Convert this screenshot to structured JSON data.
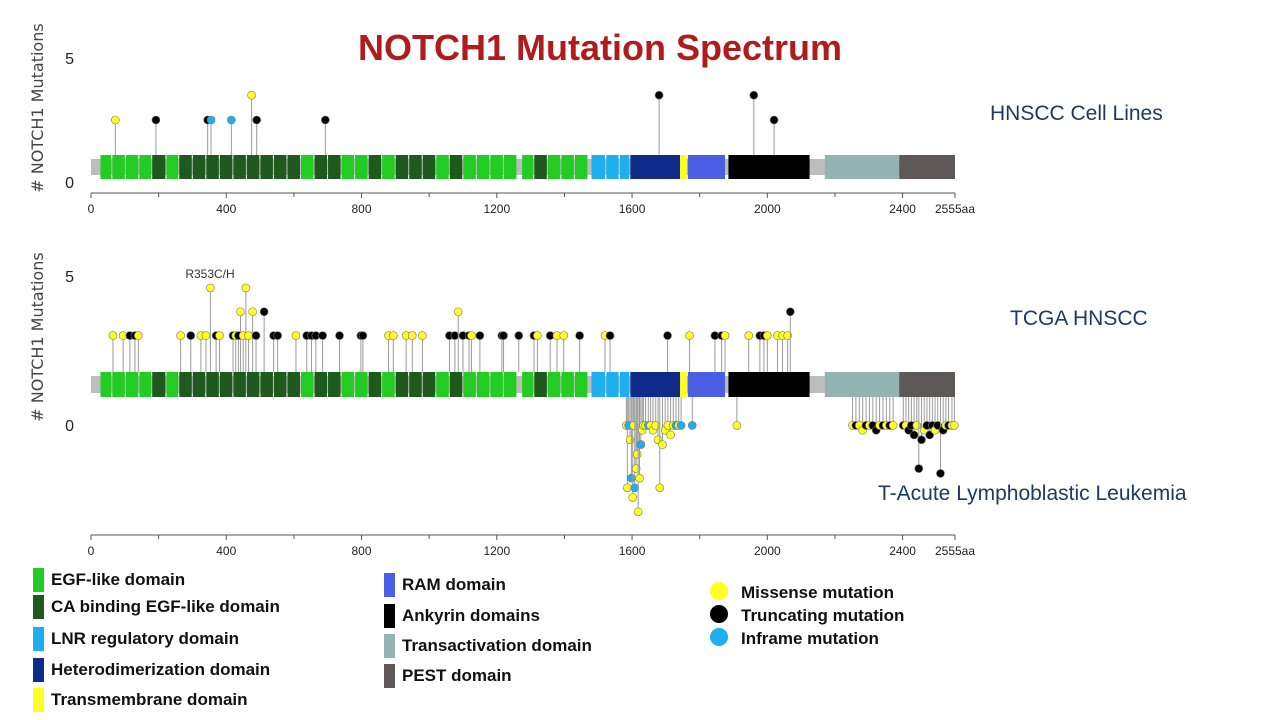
{
  "chart_data": {
    "type": "lollipop",
    "title": "NOTCH1 Mutation Spectrum",
    "ylabel": "# NOTCH1 Mutations",
    "x_max": 2555,
    "x_ticks": [
      0,
      400,
      800,
      1200,
      1600,
      2000,
      2400,
      2555
    ],
    "x_tick_labels": [
      "0",
      "400",
      "800",
      "1200",
      "1600",
      "2000",
      "2400",
      "2555aa"
    ],
    "domains": [
      {
        "name": "EGF-like domain",
        "color": "#22cc22"
      },
      {
        "name": "CA binding EGF-like domain",
        "color": "#1e5a1e"
      },
      {
        "name": "LNR regulatory domain",
        "color": "#1eaff0"
      },
      {
        "name": "Heterodimerization domain",
        "color": "#0e2b8a"
      },
      {
        "name": "Transmembrane domain",
        "color": "#ffff22"
      },
      {
        "name": "RAM domain",
        "color": "#4a5ee6"
      },
      {
        "name": "Ankyrin domains",
        "color": "#000000"
      },
      {
        "name": "Transactivation domain",
        "color": "#94b4b4"
      },
      {
        "name": "PEST domain",
        "color": "#5e5858"
      }
    ],
    "domain_segments": [
      {
        "domain": 0,
        "start": 28,
        "end": 60
      },
      {
        "domain": 0,
        "start": 63,
        "end": 100
      },
      {
        "domain": 0,
        "start": 103,
        "end": 140
      },
      {
        "domain": 0,
        "start": 143,
        "end": 178
      },
      {
        "domain": 1,
        "start": 181,
        "end": 220
      },
      {
        "domain": 0,
        "start": 223,
        "end": 258
      },
      {
        "domain": 1,
        "start": 261,
        "end": 298
      },
      {
        "domain": 1,
        "start": 301,
        "end": 338
      },
      {
        "domain": 1,
        "start": 341,
        "end": 378
      },
      {
        "domain": 1,
        "start": 381,
        "end": 418
      },
      {
        "domain": 1,
        "start": 421,
        "end": 458
      },
      {
        "domain": 1,
        "start": 461,
        "end": 498
      },
      {
        "domain": 1,
        "start": 501,
        "end": 538
      },
      {
        "domain": 1,
        "start": 541,
        "end": 578
      },
      {
        "domain": 1,
        "start": 581,
        "end": 618
      },
      {
        "domain": 0,
        "start": 621,
        "end": 658
      },
      {
        "domain": 1,
        "start": 661,
        "end": 698
      },
      {
        "domain": 1,
        "start": 701,
        "end": 738
      },
      {
        "domain": 0,
        "start": 741,
        "end": 778
      },
      {
        "domain": 0,
        "start": 781,
        "end": 818
      },
      {
        "domain": 1,
        "start": 821,
        "end": 858
      },
      {
        "domain": 0,
        "start": 861,
        "end": 898
      },
      {
        "domain": 1,
        "start": 901,
        "end": 938
      },
      {
        "domain": 1,
        "start": 941,
        "end": 978
      },
      {
        "domain": 1,
        "start": 981,
        "end": 1018
      },
      {
        "domain": 0,
        "start": 1021,
        "end": 1058
      },
      {
        "domain": 1,
        "start": 1061,
        "end": 1098
      },
      {
        "domain": 0,
        "start": 1101,
        "end": 1138
      },
      {
        "domain": 0,
        "start": 1141,
        "end": 1178
      },
      {
        "domain": 0,
        "start": 1181,
        "end": 1218
      },
      {
        "domain": 0,
        "start": 1221,
        "end": 1258
      },
      {
        "domain": 0,
        "start": 1275,
        "end": 1308
      },
      {
        "domain": 1,
        "start": 1311,
        "end": 1348
      },
      {
        "domain": 0,
        "start": 1351,
        "end": 1388
      },
      {
        "domain": 0,
        "start": 1391,
        "end": 1428
      },
      {
        "domain": 0,
        "start": 1431,
        "end": 1468
      },
      {
        "domain": 2,
        "start": 1480,
        "end": 1520
      },
      {
        "domain": 2,
        "start": 1524,
        "end": 1560
      },
      {
        "domain": 2,
        "start": 1564,
        "end": 1592
      },
      {
        "domain": 3,
        "start": 1595,
        "end": 1742
      },
      {
        "domain": 4,
        "start": 1742,
        "end": 1762
      },
      {
        "domain": 5,
        "start": 1765,
        "end": 1875
      },
      {
        "domain": 6,
        "start": 1885,
        "end": 2125
      },
      {
        "domain": 7,
        "start": 2170,
        "end": 2390
      },
      {
        "domain": 8,
        "start": 2390,
        "end": 2555
      }
    ],
    "mutation_types": [
      {
        "name": "Missense mutation",
        "color": "#ffff22"
      },
      {
        "name": "Truncating mutation",
        "color": "#000000"
      },
      {
        "name": "Inframe mutation",
        "color": "#1eaff0"
      }
    ],
    "panels": [
      {
        "label": "HNSCC Cell Lines",
        "y_ticks": [
          0,
          5
        ],
        "y_max": 5,
        "has_lower": false,
        "upper_mutations": [
          {
            "pos": 72,
            "count": 2.5,
            "type": 0
          },
          {
            "pos": 192,
            "count": 2.5,
            "type": 1
          },
          {
            "pos": 345,
            "count": 2.5,
            "type": 1
          },
          {
            "pos": 355,
            "count": 2.5,
            "type": 2
          },
          {
            "pos": 415,
            "count": 2.5,
            "type": 2
          },
          {
            "pos": 475,
            "count": 3.5,
            "type": 0
          },
          {
            "pos": 490,
            "count": 2.5,
            "type": 1
          },
          {
            "pos": 693,
            "count": 2.5,
            "type": 1
          },
          {
            "pos": 1680,
            "count": 3.5,
            "type": 1
          },
          {
            "pos": 1960,
            "count": 3.5,
            "type": 1
          },
          {
            "pos": 2020,
            "count": 2.5,
            "type": 1
          }
        ],
        "lower_mutations": []
      },
      {
        "label": "TCGA HNSCC",
        "lower_label": "T-Acute Lymphoblastic Leukemia",
        "annotation": {
          "text": "R353C/H",
          "pos": 353
        },
        "y_ticks": [
          0,
          5
        ],
        "y_max": 5,
        "has_lower": true,
        "upper_mutations": [
          {
            "pos": 65,
            "count": 3,
            "type": 0
          },
          {
            "pos": 95,
            "count": 3,
            "type": 0
          },
          {
            "pos": 115,
            "count": 3,
            "type": 1
          },
          {
            "pos": 130,
            "count": 3,
            "type": 1
          },
          {
            "pos": 140,
            "count": 3,
            "type": 0
          },
          {
            "pos": 265,
            "count": 3,
            "type": 0
          },
          {
            "pos": 295,
            "count": 3,
            "type": 1
          },
          {
            "pos": 325,
            "count": 3,
            "type": 0
          },
          {
            "pos": 340,
            "count": 3,
            "type": 0
          },
          {
            "pos": 353,
            "count": 4.6,
            "type": 0
          },
          {
            "pos": 370,
            "count": 3,
            "type": 1
          },
          {
            "pos": 380,
            "count": 3,
            "type": 0
          },
          {
            "pos": 420,
            "count": 3,
            "type": 1
          },
          {
            "pos": 428,
            "count": 3,
            "type": 0
          },
          {
            "pos": 436,
            "count": 3,
            "type": 1
          },
          {
            "pos": 442,
            "count": 3.8,
            "type": 0
          },
          {
            "pos": 450,
            "count": 3,
            "type": 0
          },
          {
            "pos": 458,
            "count": 4.6,
            "type": 0
          },
          {
            "pos": 466,
            "count": 3,
            "type": 0
          },
          {
            "pos": 478,
            "count": 3.8,
            "type": 0
          },
          {
            "pos": 488,
            "count": 3,
            "type": 1
          },
          {
            "pos": 512,
            "count": 3.8,
            "type": 1
          },
          {
            "pos": 540,
            "count": 3,
            "type": 1
          },
          {
            "pos": 552,
            "count": 3,
            "type": 1
          },
          {
            "pos": 606,
            "count": 3,
            "type": 0
          },
          {
            "pos": 638,
            "count": 3,
            "type": 1
          },
          {
            "pos": 652,
            "count": 3,
            "type": 1
          },
          {
            "pos": 665,
            "count": 3,
            "type": 1
          },
          {
            "pos": 685,
            "count": 3,
            "type": 1
          },
          {
            "pos": 735,
            "count": 3,
            "type": 1
          },
          {
            "pos": 798,
            "count": 3,
            "type": 1
          },
          {
            "pos": 804,
            "count": 3,
            "type": 1
          },
          {
            "pos": 880,
            "count": 3,
            "type": 0
          },
          {
            "pos": 894,
            "count": 3,
            "type": 0
          },
          {
            "pos": 932,
            "count": 3,
            "type": 0
          },
          {
            "pos": 950,
            "count": 3,
            "type": 0
          },
          {
            "pos": 980,
            "count": 3,
            "type": 0
          },
          {
            "pos": 1060,
            "count": 3,
            "type": 1
          },
          {
            "pos": 1076,
            "count": 3,
            "type": 1
          },
          {
            "pos": 1086,
            "count": 3.8,
            "type": 0
          },
          {
            "pos": 1100,
            "count": 3,
            "type": 1
          },
          {
            "pos": 1118,
            "count": 3,
            "type": 1
          },
          {
            "pos": 1125,
            "count": 3,
            "type": 0
          },
          {
            "pos": 1150,
            "count": 3,
            "type": 1
          },
          {
            "pos": 1215,
            "count": 3,
            "type": 1
          },
          {
            "pos": 1220,
            "count": 3,
            "type": 1
          },
          {
            "pos": 1265,
            "count": 3,
            "type": 1
          },
          {
            "pos": 1310,
            "count": 3,
            "type": 1
          },
          {
            "pos": 1320,
            "count": 3,
            "type": 0
          },
          {
            "pos": 1358,
            "count": 3,
            "type": 1
          },
          {
            "pos": 1378,
            "count": 3,
            "type": 0
          },
          {
            "pos": 1398,
            "count": 3,
            "type": 0
          },
          {
            "pos": 1445,
            "count": 3,
            "type": 1
          },
          {
            "pos": 1520,
            "count": 3,
            "type": 0
          },
          {
            "pos": 1535,
            "count": 3,
            "type": 1
          },
          {
            "pos": 1705,
            "count": 3,
            "type": 1
          },
          {
            "pos": 1770,
            "count": 3,
            "type": 0
          },
          {
            "pos": 1845,
            "count": 3,
            "type": 1
          },
          {
            "pos": 1865,
            "count": 3,
            "type": 1
          },
          {
            "pos": 1875,
            "count": 3,
            "type": 0
          },
          {
            "pos": 1945,
            "count": 3,
            "type": 0
          },
          {
            "pos": 1978,
            "count": 3,
            "type": 1
          },
          {
            "pos": 1990,
            "count": 3,
            "type": 1
          },
          {
            "pos": 2000,
            "count": 3,
            "type": 0
          },
          {
            "pos": 2030,
            "count": 3,
            "type": 0
          },
          {
            "pos": 2045,
            "count": 3,
            "type": 0
          },
          {
            "pos": 2060,
            "count": 3,
            "type": 0
          },
          {
            "pos": 2068,
            "count": 3.8,
            "type": 1
          }
        ],
        "lower_mutations": [
          {
            "pos": 1583,
            "count": 0.3,
            "type": 0
          },
          {
            "pos": 1586,
            "count": 1.6,
            "type": 0
          },
          {
            "pos": 1590,
            "count": 0.3,
            "type": 2
          },
          {
            "pos": 1594,
            "count": 0.6,
            "type": 0
          },
          {
            "pos": 1598,
            "count": 1.4,
            "type": 2
          },
          {
            "pos": 1602,
            "count": 1.8,
            "type": 0
          },
          {
            "pos": 1605,
            "count": 0.3,
            "type": 0
          },
          {
            "pos": 1608,
            "count": 1.6,
            "type": 2
          },
          {
            "pos": 1612,
            "count": 1.2,
            "type": 0
          },
          {
            "pos": 1615,
            "count": 0.9,
            "type": 0
          },
          {
            "pos": 1618,
            "count": 2.1,
            "type": 0
          },
          {
            "pos": 1622,
            "count": 1.4,
            "type": 0
          },
          {
            "pos": 1626,
            "count": 0.7,
            "type": 2
          },
          {
            "pos": 1630,
            "count": 0.4,
            "type": 0
          },
          {
            "pos": 1634,
            "count": 0.3,
            "type": 0
          },
          {
            "pos": 1640,
            "count": 0.3,
            "type": 0
          },
          {
            "pos": 1648,
            "count": 0.3,
            "type": 2
          },
          {
            "pos": 1655,
            "count": 0.3,
            "type": 0
          },
          {
            "pos": 1662,
            "count": 0.4,
            "type": 0
          },
          {
            "pos": 1670,
            "count": 0.3,
            "type": 0
          },
          {
            "pos": 1677,
            "count": 0.6,
            "type": 0
          },
          {
            "pos": 1682,
            "count": 1.6,
            "type": 0
          },
          {
            "pos": 1690,
            "count": 0.7,
            "type": 0
          },
          {
            "pos": 1698,
            "count": 0.4,
            "type": 0
          },
          {
            "pos": 1706,
            "count": 0.3,
            "type": 0
          },
          {
            "pos": 1714,
            "count": 0.5,
            "type": 0
          },
          {
            "pos": 1722,
            "count": 0.3,
            "type": 0
          },
          {
            "pos": 1730,
            "count": 0.3,
            "type": 2
          },
          {
            "pos": 1738,
            "count": 0.3,
            "type": 0
          },
          {
            "pos": 1745,
            "count": 0.3,
            "type": 2
          },
          {
            "pos": 1778,
            "count": 0.3,
            "type": 2
          },
          {
            "pos": 1910,
            "count": 0.3,
            "type": 0
          },
          {
            "pos": 2252,
            "count": 0.3,
            "type": 0
          },
          {
            "pos": 2262,
            "count": 0.3,
            "type": 1
          },
          {
            "pos": 2272,
            "count": 0.3,
            "type": 0
          },
          {
            "pos": 2282,
            "count": 0.4,
            "type": 0
          },
          {
            "pos": 2292,
            "count": 0.3,
            "type": 1
          },
          {
            "pos": 2302,
            "count": 0.3,
            "type": 0
          },
          {
            "pos": 2312,
            "count": 0.3,
            "type": 1
          },
          {
            "pos": 2322,
            "count": 0.4,
            "type": 1
          },
          {
            "pos": 2332,
            "count": 0.3,
            "type": 0
          },
          {
            "pos": 2342,
            "count": 0.3,
            "type": 1
          },
          {
            "pos": 2352,
            "count": 0.3,
            "type": 0
          },
          {
            "pos": 2362,
            "count": 0.3,
            "type": 1
          },
          {
            "pos": 2372,
            "count": 0.3,
            "type": 0
          },
          {
            "pos": 2402,
            "count": 0.3,
            "type": 1
          },
          {
            "pos": 2410,
            "count": 0.3,
            "type": 0
          },
          {
            "pos": 2418,
            "count": 0.4,
            "type": 1
          },
          {
            "pos": 2426,
            "count": 0.3,
            "type": 1
          },
          {
            "pos": 2434,
            "count": 0.5,
            "type": 1
          },
          {
            "pos": 2442,
            "count": 0.3,
            "type": 0
          },
          {
            "pos": 2448,
            "count": 1.2,
            "type": 1
          },
          {
            "pos": 2456,
            "count": 0.6,
            "type": 1
          },
          {
            "pos": 2464,
            "count": 0.4,
            "type": 0
          },
          {
            "pos": 2472,
            "count": 0.3,
            "type": 1
          },
          {
            "pos": 2480,
            "count": 0.5,
            "type": 1
          },
          {
            "pos": 2488,
            "count": 0.3,
            "type": 1
          },
          {
            "pos": 2496,
            "count": 0.4,
            "type": 0
          },
          {
            "pos": 2504,
            "count": 0.3,
            "type": 1
          },
          {
            "pos": 2512,
            "count": 1.3,
            "type": 1
          },
          {
            "pos": 2520,
            "count": 0.4,
            "type": 1
          },
          {
            "pos": 2528,
            "count": 0.3,
            "type": 0
          },
          {
            "pos": 2536,
            "count": 0.3,
            "type": 1
          },
          {
            "pos": 2546,
            "count": 0.3,
            "type": 0
          },
          {
            "pos": 2553,
            "count": 0.3,
            "type": 0
          }
        ]
      }
    ]
  }
}
